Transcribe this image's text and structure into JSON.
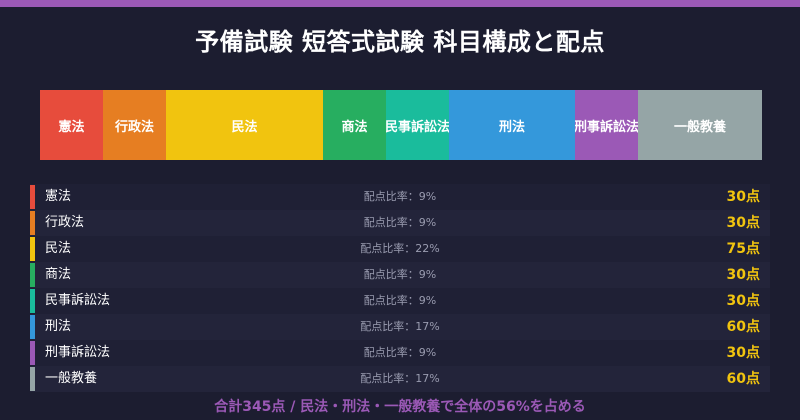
{
  "title": "予備試験 短答式試験 科目構成と配点",
  "accent_color": "#9b59b6",
  "score_color": "#f1c40f",
  "chart_data": {
    "type": "bar",
    "orientation": "stacked-horizontal",
    "categories": [
      "憲法",
      "行政法",
      "民法",
      "商法",
      "民事訴訟法",
      "刑法",
      "刑事訴訟法",
      "一般教養"
    ],
    "values": [
      30,
      30,
      75,
      30,
      30,
      60,
      30,
      60
    ],
    "colors": [
      "#e74c3c",
      "#e67e22",
      "#f1c40f",
      "#27ae60",
      "#1abc9c",
      "#3498db",
      "#9b59b6",
      "#95a5a6"
    ],
    "title": "予備試験 短答式試験 科目構成と配点"
  },
  "table": {
    "rows": [
      {
        "name": "憲法",
        "ratio": "配点比率：9%",
        "score": "30点"
      },
      {
        "name": "行政法",
        "ratio": "配点比率：9%",
        "score": "30点"
      },
      {
        "name": "民法",
        "ratio": "配点比率：22%",
        "score": "75点"
      },
      {
        "name": "商法",
        "ratio": "配点比率：9%",
        "score": "30点"
      },
      {
        "name": "民事訴訟法",
        "ratio": "配点比率：9%",
        "score": "30点"
      },
      {
        "name": "刑法",
        "ratio": "配点比率：17%",
        "score": "60点"
      },
      {
        "name": "刑事訴訟法",
        "ratio": "配点比率：9%",
        "score": "30点"
      },
      {
        "name": "一般教養",
        "ratio": "配点比率：17%",
        "score": "60点"
      }
    ]
  },
  "footnote": "合計345点 / 民法・刑法・一般教養で全体の56%を占める"
}
